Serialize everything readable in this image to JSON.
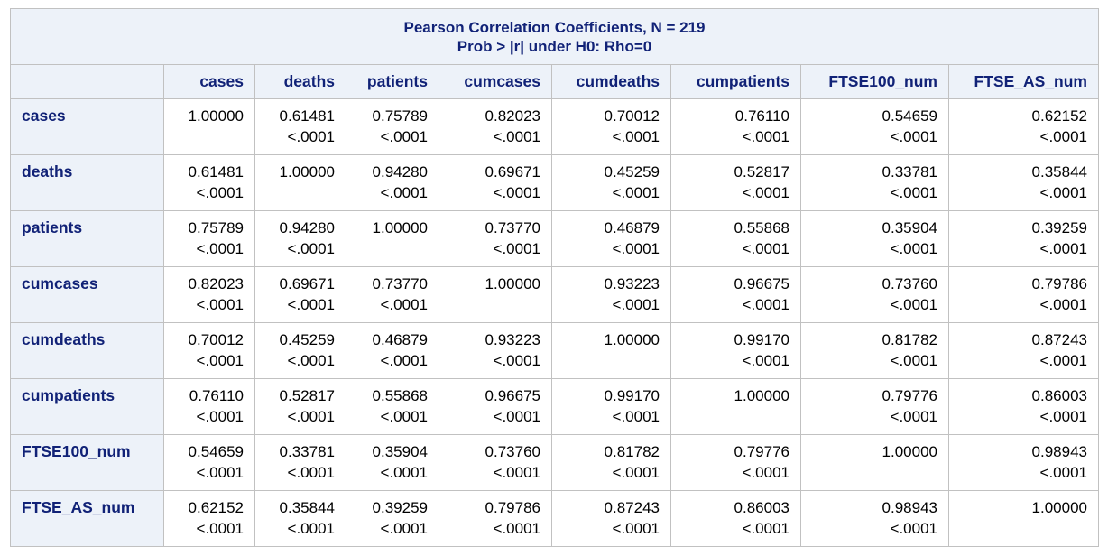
{
  "title": {
    "line1": "Pearson Correlation Coefficients, N = 219",
    "line2": "Prob > |r| under H0: Rho=0"
  },
  "columns": [
    "cases",
    "deaths",
    "patients",
    "cumcases",
    "cumdeaths",
    "cumpatients",
    "FTSE100_num",
    "FTSE_AS_num"
  ],
  "rows": [
    {
      "label": "cases",
      "cells": [
        {
          "coef": "1.00000",
          "p": ""
        },
        {
          "coef": "0.61481",
          "p": "<.0001"
        },
        {
          "coef": "0.75789",
          "p": "<.0001"
        },
        {
          "coef": "0.82023",
          "p": "<.0001"
        },
        {
          "coef": "0.70012",
          "p": "<.0001"
        },
        {
          "coef": "0.76110",
          "p": "<.0001"
        },
        {
          "coef": "0.54659",
          "p": "<.0001"
        },
        {
          "coef": "0.62152",
          "p": "<.0001"
        }
      ]
    },
    {
      "label": "deaths",
      "cells": [
        {
          "coef": "0.61481",
          "p": "<.0001"
        },
        {
          "coef": "1.00000",
          "p": ""
        },
        {
          "coef": "0.94280",
          "p": "<.0001"
        },
        {
          "coef": "0.69671",
          "p": "<.0001"
        },
        {
          "coef": "0.45259",
          "p": "<.0001"
        },
        {
          "coef": "0.52817",
          "p": "<.0001"
        },
        {
          "coef": "0.33781",
          "p": "<.0001"
        },
        {
          "coef": "0.35844",
          "p": "<.0001"
        }
      ]
    },
    {
      "label": "patients",
      "cells": [
        {
          "coef": "0.75789",
          "p": "<.0001"
        },
        {
          "coef": "0.94280",
          "p": "<.0001"
        },
        {
          "coef": "1.00000",
          "p": ""
        },
        {
          "coef": "0.73770",
          "p": "<.0001"
        },
        {
          "coef": "0.46879",
          "p": "<.0001"
        },
        {
          "coef": "0.55868",
          "p": "<.0001"
        },
        {
          "coef": "0.35904",
          "p": "<.0001"
        },
        {
          "coef": "0.39259",
          "p": "<.0001"
        }
      ]
    },
    {
      "label": "cumcases",
      "cells": [
        {
          "coef": "0.82023",
          "p": "<.0001"
        },
        {
          "coef": "0.69671",
          "p": "<.0001"
        },
        {
          "coef": "0.73770",
          "p": "<.0001"
        },
        {
          "coef": "1.00000",
          "p": ""
        },
        {
          "coef": "0.93223",
          "p": "<.0001"
        },
        {
          "coef": "0.96675",
          "p": "<.0001"
        },
        {
          "coef": "0.73760",
          "p": "<.0001"
        },
        {
          "coef": "0.79786",
          "p": "<.0001"
        }
      ]
    },
    {
      "label": "cumdeaths",
      "cells": [
        {
          "coef": "0.70012",
          "p": "<.0001"
        },
        {
          "coef": "0.45259",
          "p": "<.0001"
        },
        {
          "coef": "0.46879",
          "p": "<.0001"
        },
        {
          "coef": "0.93223",
          "p": "<.0001"
        },
        {
          "coef": "1.00000",
          "p": ""
        },
        {
          "coef": "0.99170",
          "p": "<.0001"
        },
        {
          "coef": "0.81782",
          "p": "<.0001"
        },
        {
          "coef": "0.87243",
          "p": "<.0001"
        }
      ]
    },
    {
      "label": "cumpatients",
      "cells": [
        {
          "coef": "0.76110",
          "p": "<.0001"
        },
        {
          "coef": "0.52817",
          "p": "<.0001"
        },
        {
          "coef": "0.55868",
          "p": "<.0001"
        },
        {
          "coef": "0.96675",
          "p": "<.0001"
        },
        {
          "coef": "0.99170",
          "p": "<.0001"
        },
        {
          "coef": "1.00000",
          "p": ""
        },
        {
          "coef": "0.79776",
          "p": "<.0001"
        },
        {
          "coef": "0.86003",
          "p": "<.0001"
        }
      ]
    },
    {
      "label": "FTSE100_num",
      "cells": [
        {
          "coef": "0.54659",
          "p": "<.0001"
        },
        {
          "coef": "0.33781",
          "p": "<.0001"
        },
        {
          "coef": "0.35904",
          "p": "<.0001"
        },
        {
          "coef": "0.73760",
          "p": "<.0001"
        },
        {
          "coef": "0.81782",
          "p": "<.0001"
        },
        {
          "coef": "0.79776",
          "p": "<.0001"
        },
        {
          "coef": "1.00000",
          "p": ""
        },
        {
          "coef": "0.98943",
          "p": "<.0001"
        }
      ]
    },
    {
      "label": "FTSE_AS_num",
      "cells": [
        {
          "coef": "0.62152",
          "p": "<.0001"
        },
        {
          "coef": "0.35844",
          "p": "<.0001"
        },
        {
          "coef": "0.39259",
          "p": "<.0001"
        },
        {
          "coef": "0.79786",
          "p": "<.0001"
        },
        {
          "coef": "0.87243",
          "p": "<.0001"
        },
        {
          "coef": "0.86003",
          "p": "<.0001"
        },
        {
          "coef": "0.98943",
          "p": "<.0001"
        },
        {
          "coef": "1.00000",
          "p": ""
        }
      ]
    }
  ],
  "colors": {
    "header_bg": "#edf2f9",
    "header_text": "#112277",
    "border": "#c1c1c1",
    "cell_text": "#000000"
  }
}
